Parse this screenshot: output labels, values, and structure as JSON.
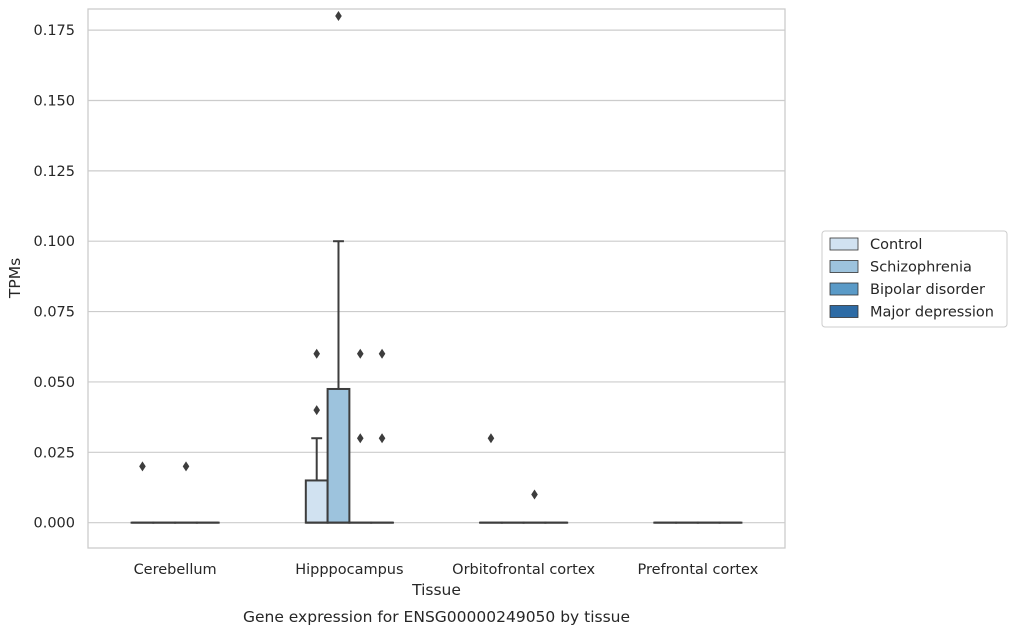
{
  "chart_data": {
    "type": "box",
    "caption": "Gene expression for ENSG00000249050 by tissue",
    "xlabel": "Tissue",
    "ylabel": "TPMs",
    "ylim": [
      -0.009,
      0.1825
    ],
    "yticks": [
      0.0,
      0.025,
      0.05,
      0.075,
      0.1,
      0.125,
      0.15,
      0.175
    ],
    "ytick_labels": [
      "0.000",
      "0.025",
      "0.050",
      "0.075",
      "0.100",
      "0.125",
      "0.150",
      "0.175"
    ],
    "categories": [
      "Cerebellum",
      "Hipppocampus",
      "Orbitofrontal cortex",
      "Prefrontal cortex"
    ],
    "grid": "horizontal",
    "legend_position": "right",
    "series": [
      {
        "name": "Control",
        "color": "#d1e2f1",
        "boxes": [
          {
            "q1": 0,
            "median": 0,
            "q3": 0,
            "whisker_low": 0,
            "whisker_high": 0,
            "outliers": [
              0.02
            ]
          },
          {
            "q1": 0,
            "median": 0,
            "q3": 0.015,
            "whisker_low": 0,
            "whisker_high": 0.03,
            "outliers": [
              0.04,
              0.06
            ]
          },
          {
            "q1": 0,
            "median": 0,
            "q3": 0,
            "whisker_low": 0,
            "whisker_high": 0,
            "outliers": [
              0.03
            ]
          },
          {
            "q1": 0,
            "median": 0,
            "q3": 0,
            "whisker_low": 0,
            "whisker_high": 0,
            "outliers": []
          }
        ]
      },
      {
        "name": "Schizophrenia",
        "color": "#9dc3dd",
        "boxes": [
          {
            "q1": 0,
            "median": 0,
            "q3": 0,
            "whisker_low": 0,
            "whisker_high": 0,
            "outliers": []
          },
          {
            "q1": 0,
            "median": 0,
            "q3": 0.0475,
            "whisker_low": 0,
            "whisker_high": 0.1,
            "outliers": [
              0.18
            ]
          },
          {
            "q1": 0,
            "median": 0,
            "q3": 0,
            "whisker_low": 0,
            "whisker_high": 0,
            "outliers": []
          },
          {
            "q1": 0,
            "median": 0,
            "q3": 0,
            "whisker_low": 0,
            "whisker_high": 0,
            "outliers": []
          }
        ]
      },
      {
        "name": "Bipolar disorder",
        "color": "#5a9ac7",
        "boxes": [
          {
            "q1": 0,
            "median": 0,
            "q3": 0,
            "whisker_low": 0,
            "whisker_high": 0,
            "outliers": [
              0.02
            ]
          },
          {
            "q1": 0,
            "median": 0,
            "q3": 0,
            "whisker_low": 0,
            "whisker_high": 0,
            "outliers": [
              0.03,
              0.06
            ]
          },
          {
            "q1": 0,
            "median": 0,
            "q3": 0,
            "whisker_low": 0,
            "whisker_high": 0,
            "outliers": [
              0.01
            ]
          },
          {
            "q1": 0,
            "median": 0,
            "q3": 0,
            "whisker_low": 0,
            "whisker_high": 0,
            "outliers": []
          }
        ]
      },
      {
        "name": "Major depression",
        "color": "#2d6ba5",
        "boxes": [
          {
            "q1": 0,
            "median": 0,
            "q3": 0,
            "whisker_low": 0,
            "whisker_high": 0,
            "outliers": []
          },
          {
            "q1": 0,
            "median": 0,
            "q3": 0,
            "whisker_low": 0,
            "whisker_high": 0,
            "outliers": [
              0.03,
              0.06
            ]
          },
          {
            "q1": 0,
            "median": 0,
            "q3": 0,
            "whisker_low": 0,
            "whisker_high": 0,
            "outliers": []
          },
          {
            "q1": 0,
            "median": 0,
            "q3": 0,
            "whisker_low": 0,
            "whisker_high": 0,
            "outliers": []
          }
        ]
      }
    ]
  }
}
